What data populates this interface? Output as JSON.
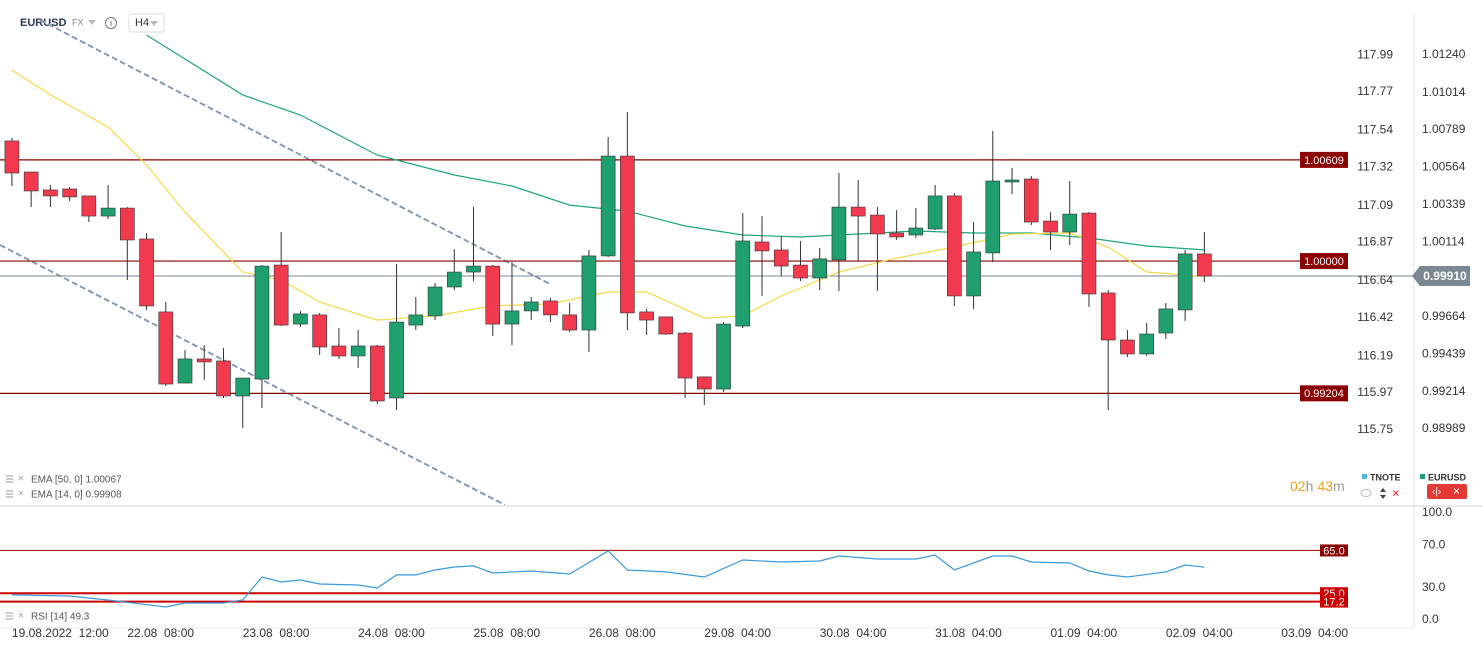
{
  "chart_data": [
    {
      "type": "candlestick",
      "title": "EURUSD",
      "subtitle": "FX",
      "timeframe": "H4",
      "xlim": [
        -0.62,
        72.9
      ],
      "xticks": [
        {
          "value": 0,
          "label": "19.08.2022  12:00"
        },
        {
          "value": 6,
          "label": "22.08  08:00"
        },
        {
          "value": 12,
          "label": "23.08  08:00"
        },
        {
          "value": 18,
          "label": "24.08  08:00"
        },
        {
          "value": 24,
          "label": "25.08  08:00"
        },
        {
          "value": 30,
          "label": "26.08  08:00"
        },
        {
          "value": 36,
          "label": "29.08  04:00"
        },
        {
          "value": 42,
          "label": "30.08  04:00"
        },
        {
          "value": 48,
          "label": "31.08  04:00"
        },
        {
          "value": 54,
          "label": "01.09  04:00"
        },
        {
          "value": 60,
          "label": "02.09  04:00"
        },
        {
          "value": 66,
          "label": "03.09  04:00"
        }
      ],
      "ylim": [
        0.98532,
        1.01481
      ],
      "yticks": [
        {
          "value": 1.0124,
          "label": "1.01240"
        },
        1.01014,
        1.00789,
        1.00564,
        1.00339,
        1.00114,
        0.99664,
        0.99439,
        0.99214,
        0.98989
      ],
      "y2lim": [
        115.3,
        118.23
      ],
      "y2ticks": [
        117.99,
        117.77,
        117.54,
        117.32,
        117.09,
        116.87,
        116.64,
        116.42,
        116.19,
        115.97,
        115.75
      ],
      "candles": {
        "up_color": "#1f9e6e",
        "down_color": "#f23a4e",
        "open": [
          1.00723,
          1.00536,
          1.00428,
          1.00434,
          1.00392,
          1.00271,
          1.00319,
          1.00133,
          0.99694,
          0.99266,
          0.99411,
          0.99399,
          0.99188,
          0.9929,
          0.99976,
          0.99621,
          0.99676,
          0.99489,
          0.99429,
          0.99489,
          0.99176,
          0.99615,
          0.9967,
          0.99844,
          0.99934,
          0.9997,
          0.99621,
          0.997,
          0.9976,
          0.99676,
          0.99585,
          1.00031,
          1.00632,
          0.99694,
          0.99664,
          0.99567,
          0.99303,
          0.9923,
          0.99609,
          1.00115,
          1.00067,
          0.99976,
          0.99898,
          1.00007,
          1.00325,
          1.00277,
          1.00169,
          1.00157,
          1.00193,
          1.00392,
          0.9979,
          1.00049,
          1.00476,
          1.00494,
          1.00241,
          1.00175,
          1.00289,
          0.99808,
          0.99525,
          0.99441,
          0.99567,
          0.99706,
          1.00043
        ],
        "high": [
          1.00741,
          1.00536,
          1.00458,
          1.00446,
          1.00392,
          1.00458,
          1.00325,
          1.00169,
          0.99754,
          0.99465,
          0.99495,
          0.99477,
          0.99296,
          0.99976,
          1.00175,
          0.997,
          0.99688,
          0.99597,
          0.99585,
          0.99495,
          0.99982,
          0.99784,
          0.99868,
          1.00073,
          1.00325,
          0.99976,
          0.99994,
          0.99784,
          0.99778,
          0.99748,
          1.00067,
          1.00747,
          1.00897,
          0.99712,
          0.99664,
          0.99573,
          0.99303,
          0.99633,
          1.00289,
          1.00271,
          1.00151,
          1.00121,
          1.00079,
          1.0053,
          1.00488,
          1.00325,
          1.00307,
          1.00319,
          1.00458,
          1.0041,
          1.00235,
          1.00783,
          1.0056,
          1.00512,
          1.00295,
          1.00482,
          1.00295,
          0.99826,
          0.99585,
          0.99627,
          0.99748,
          1.00067,
          1.00175
        ],
        "low": [
          1.00452,
          1.00325,
          1.00325,
          1.00362,
          1.00235,
          1.00253,
          0.99886,
          0.99706,
          0.99248,
          0.99266,
          0.99284,
          0.99176,
          0.98996,
          0.99116,
          0.99609,
          0.99603,
          0.99435,
          0.99411,
          0.99357,
          0.9914,
          0.99104,
          0.99585,
          0.99645,
          0.99826,
          0.9988,
          0.99549,
          0.99495,
          0.99645,
          0.99633,
          0.99573,
          0.99453,
          1.00025,
          0.99585,
          0.99555,
          0.99555,
          0.99176,
          0.99134,
          0.99212,
          0.99597,
          0.9979,
          0.9991,
          0.9988,
          0.99826,
          0.9982,
          1.0,
          0.9982,
          1.00127,
          1.00139,
          1.00187,
          0.9973,
          0.99712,
          0.99994,
          1.00404,
          1.00217,
          1.00067,
          1.00097,
          0.99724,
          0.99104,
          0.99423,
          0.99429,
          0.99531,
          0.99639,
          0.99874
        ],
        "close": [
          1.0053,
          1.00422,
          1.00392,
          1.00386,
          1.00271,
          1.00319,
          1.00127,
          0.9973,
          0.9926,
          0.99411,
          0.99393,
          0.99188,
          0.99296,
          0.9997,
          0.99615,
          0.99682,
          0.99483,
          0.99429,
          0.99489,
          0.99158,
          0.99633,
          0.99676,
          0.99844,
          0.99934,
          0.9997,
          0.99621,
          0.997,
          0.99754,
          0.99676,
          0.99585,
          1.00031,
          1.00632,
          0.99688,
          0.99645,
          0.99561,
          0.99296,
          0.9923,
          0.99621,
          1.00121,
          1.00061,
          0.9997,
          0.99898,
          1.00013,
          1.00325,
          1.00271,
          1.00163,
          1.00145,
          1.00199,
          1.00392,
          0.9979,
          1.00055,
          1.00482,
          1.00488,
          1.00235,
          1.00175,
          1.00283,
          0.99802,
          0.99525,
          0.99441,
          0.99561,
          0.99712,
          1.00043,
          0.9991
        ]
      },
      "indicators": [
        {
          "label": "EMA [50, 0] 1.00067",
          "color": "#1fa67a",
          "x": [
            7,
            12,
            15,
            19,
            23,
            26,
            29,
            32,
            35,
            38,
            41,
            44,
            47,
            50,
            53,
            56,
            59,
            62
          ],
          "values": [
            1.0136,
            1.01,
            1.00879,
            1.00638,
            1.00518,
            1.00452,
            1.00337,
            1.00301,
            1.00211,
            1.00157,
            1.00145,
            1.00163,
            1.00181,
            1.00169,
            1.00169,
            1.00139,
            1.00091,
            1.00067
          ]
        },
        {
          "label": "EMA [14, 0] 0.99908",
          "color": "#f5d94a",
          "x": [
            0,
            2,
            5,
            7,
            9,
            12,
            14,
            16,
            19,
            22,
            25,
            28,
            31,
            33,
            36,
            38,
            40,
            43,
            46,
            49,
            52,
            55,
            57,
            59,
            61,
            62
          ],
          "values": [
            1.0115,
            1.01,
            1.00807,
            1.00578,
            1.00295,
            0.99934,
            0.99886,
            0.99754,
            0.99645,
            0.9967,
            0.9973,
            0.99742,
            0.99814,
            0.99814,
            0.99657,
            0.9967,
            0.9979,
            0.99934,
            1.00018,
            1.00085,
            1.00163,
            1.00169,
            1.00085,
            0.99934,
            0.99916,
            0.99908
          ]
        }
      ],
      "levels": [
        1.00609,
        {
          "value": 1.0,
          "label": "1.00000"
        },
        0.99204
      ],
      "level_color": "#8b0000",
      "last_price": {
        "value": 0.9991,
        "label": "0.99910"
      },
      "countdown": [
        "02",
        "h",
        "43",
        "m"
      ],
      "legend": [
        {
          "name": "TNOTE",
          "color": "#4fb3e8"
        },
        {
          "name": "EURUSD",
          "color": "#1f9e6e"
        }
      ]
    },
    {
      "type": "line",
      "title": "RSI [14] 49.3",
      "color": "#3a9ad9",
      "xlim": [
        -0.62,
        72.9
      ],
      "x": [
        0,
        3,
        5,
        8,
        9,
        11,
        12,
        13,
        14,
        15,
        16,
        18,
        19,
        20,
        21,
        22,
        23,
        24,
        25,
        27,
        29,
        31,
        32,
        34,
        36,
        38,
        40,
        42,
        43,
        45,
        47,
        48,
        49,
        51,
        52,
        53,
        55,
        56,
        57,
        58,
        60,
        61,
        62
      ],
      "values": [
        23.4,
        22.4,
        18.7,
        12.1,
        15.9,
        15.9,
        18.7,
        40.2,
        35.5,
        37.4,
        33.6,
        32.7,
        29.9,
        42.1,
        42.1,
        46.7,
        49.5,
        50.5,
        43.9,
        45.8,
        43.0,
        64.5,
        46.7,
        44.9,
        40.2,
        56.1,
        54.2,
        55.1,
        59.8,
        57.0,
        57.0,
        60.7,
        46.7,
        59.8,
        59.8,
        54.2,
        53.3,
        45.8,
        42.1,
        40.2,
        44.9,
        51.4,
        49.3
      ],
      "ylim": [
        -7.5,
        105.6
      ],
      "yticks": [
        {
          "value": 100,
          "label": "100.0"
        },
        {
          "value": 70,
          "label": "70.0"
        },
        {
          "value": 30,
          "label": "30.0"
        },
        {
          "value": 0,
          "label": "0.0"
        }
      ],
      "levels": [
        {
          "value": 65,
          "label": "65.0"
        },
        {
          "value": 25,
          "label": "25.0"
        },
        17.2
      ]
    }
  ]
}
